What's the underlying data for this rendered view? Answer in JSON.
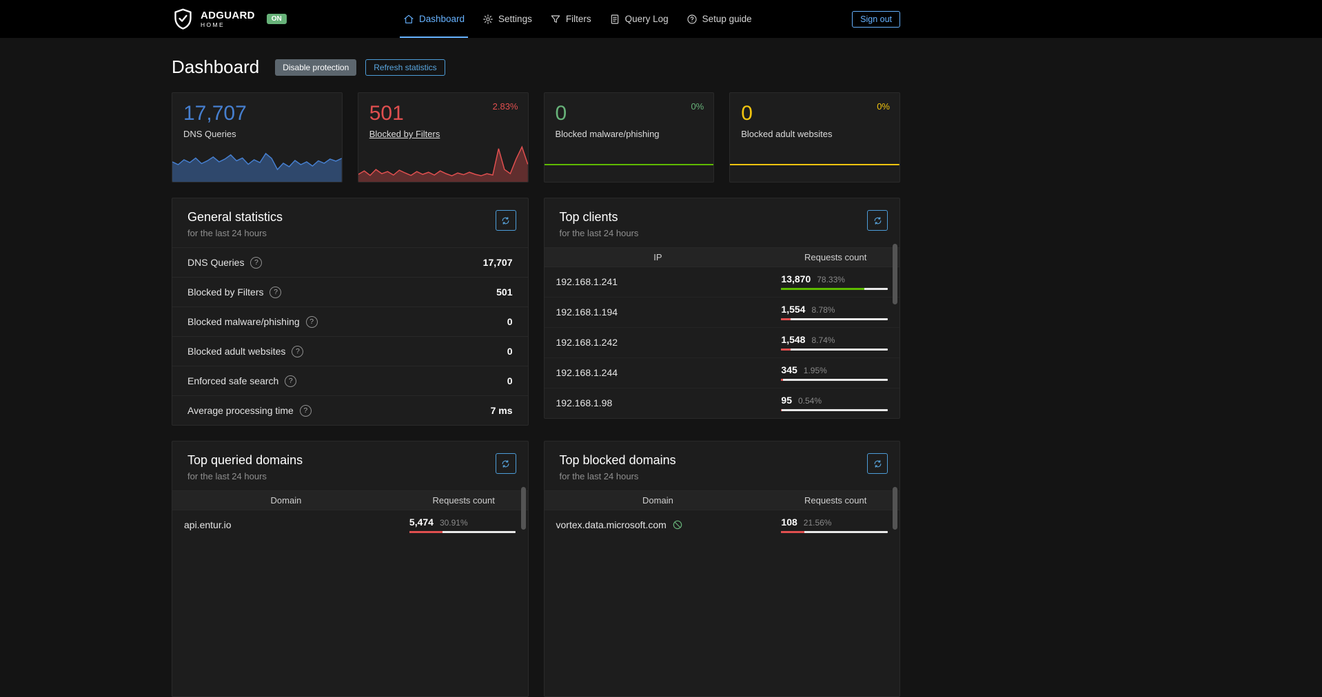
{
  "navbar": {
    "brand_name": "ADGUARD",
    "brand_sub": "HOME",
    "status_badge": "ON",
    "items": [
      {
        "label": "Dashboard",
        "active": true
      },
      {
        "label": "Settings",
        "active": false
      },
      {
        "label": "Filters",
        "active": false
      },
      {
        "label": "Query Log",
        "active": false
      },
      {
        "label": "Setup guide",
        "active": false
      }
    ],
    "sign_out": "Sign out",
    "accent_color": "#66b2ff"
  },
  "page": {
    "title": "Dashboard",
    "disable_protection": "Disable protection",
    "refresh_statistics": "Refresh statistics"
  },
  "icons": {
    "help_glyph": "?"
  },
  "stat_cards": [
    {
      "value": "17,707",
      "label": "DNS Queries",
      "color": "#467fcf",
      "spark_color": "#467fcf",
      "spark_fill": "rgba(70,127,207,0.45)",
      "spark_width": 1.5,
      "spark": [
        0.52,
        0.44,
        0.58,
        0.5,
        0.63,
        0.47,
        0.55,
        0.66,
        0.52,
        0.6,
        0.72,
        0.55,
        0.63,
        0.45,
        0.58,
        0.5,
        0.76,
        0.62,
        0.3,
        0.48,
        0.38,
        0.56,
        0.44,
        0.52,
        0.4,
        0.55,
        0.48,
        0.6,
        0.54,
        0.62
      ]
    },
    {
      "value": "501",
      "label": "Blocked by Filters",
      "percent": "2.83%",
      "color": "#e04f4f",
      "spark_color": "#e04f4f",
      "spark_fill": "rgba(224,79,79,0.35)",
      "spark_width": 1.5,
      "spark": [
        0.16,
        0.26,
        0.13,
        0.3,
        0.18,
        0.24,
        0.14,
        0.28,
        0.2,
        0.13,
        0.24,
        0.16,
        0.22,
        0.14,
        0.26,
        0.18,
        0.12,
        0.2,
        0.15,
        0.22,
        0.16,
        0.12,
        0.18,
        0.14,
        0.9,
        0.3,
        0.18,
        0.6,
        0.95,
        0.45
      ]
    },
    {
      "value": "0",
      "label": "Blocked malware/phishing",
      "percent": "0%",
      "color": "#67b279",
      "spark_color": "#5eba00",
      "spark_width": 2,
      "spark": [
        0.44,
        0.44
      ]
    },
    {
      "value": "0",
      "label": "Blocked adult websites",
      "percent": "0%",
      "color": "#f1c40f",
      "spark_color": "#f1c40f",
      "spark_width": 2,
      "spark": [
        0.44,
        0.44
      ]
    }
  ],
  "general_statistics": {
    "title": "General statistics",
    "subtitle": "for the last 24 hours",
    "rows": [
      {
        "label": "DNS Queries",
        "value": "17,707"
      },
      {
        "label": "Blocked by Filters",
        "value": "501"
      },
      {
        "label": "Blocked malware/phishing",
        "value": "0"
      },
      {
        "label": "Blocked adult websites",
        "value": "0"
      },
      {
        "label": "Enforced safe search",
        "value": "0"
      },
      {
        "label": "Average processing time",
        "value": "7 ms"
      }
    ]
  },
  "top_clients": {
    "title": "Top clients",
    "subtitle": "for the last 24 hours",
    "col_ip": "IP",
    "col_count": "Requests count",
    "rows": [
      {
        "ip": "192.168.1.241",
        "count": "13,870",
        "percent": "78.33%",
        "bar": 78.33,
        "bar_color": "#5eba00"
      },
      {
        "ip": "192.168.1.194",
        "count": "1,554",
        "percent": "8.78%",
        "bar": 8.78,
        "bar_color": "#e04f4f"
      },
      {
        "ip": "192.168.1.242",
        "count": "1,548",
        "percent": "8.74%",
        "bar": 8.74,
        "bar_color": "#e04f4f"
      },
      {
        "ip": "192.168.1.244",
        "count": "345",
        "percent": "1.95%",
        "bar": 1.95,
        "bar_color": "#e04f4f"
      },
      {
        "ip": "192.168.1.98",
        "count": "95",
        "percent": "0.54%",
        "bar": 0.54,
        "bar_color": "#e04f4f"
      }
    ]
  },
  "top_queried_domains": {
    "title": "Top queried domains",
    "subtitle": "for the last 24 hours",
    "col_domain": "Domain",
    "col_count": "Requests count",
    "rows": [
      {
        "domain": "api.entur.io",
        "count": "5,474",
        "percent": "30.91%",
        "bar": 30.91,
        "bar_color": "#e04f4f"
      }
    ]
  },
  "top_blocked_domains": {
    "title": "Top blocked domains",
    "subtitle": "for the last 24 hours",
    "col_domain": "Domain",
    "col_count": "Requests count",
    "rows": [
      {
        "domain": "vortex.data.microsoft.com",
        "count": "108",
        "percent": "21.56%",
        "bar": 21.56,
        "bar_color": "#e04f4f"
      }
    ]
  }
}
